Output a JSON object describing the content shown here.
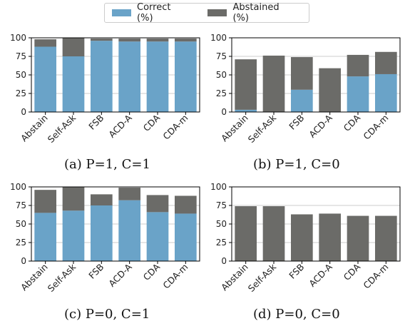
{
  "legend": {
    "items": [
      {
        "label": "Correct (%)",
        "color": "#6aa3c8"
      },
      {
        "label": "Abstained (%)",
        "color": "#6b6b68"
      }
    ]
  },
  "captions": [
    "(a) P=1, C=1",
    "(b) P=1, C=0",
    "(c) P=0, C=1",
    "(d) P=0, C=0"
  ],
  "colors": {
    "correct": "#6aa3c8",
    "abstained": "#6b6b68",
    "grid": "#cccccc",
    "axis": "#000000"
  },
  "chart_data": [
    {
      "type": "bar",
      "stacked": true,
      "categories": [
        "Abstain",
        "Self-Ask",
        "FSB",
        "ACD-A",
        "CDA",
        "CDA-m"
      ],
      "series": [
        {
          "name": "Correct (%)",
          "values": [
            88,
            75,
            96,
            95,
            95,
            95
          ]
        },
        {
          "name": "Abstained (%)",
          "values": [
            10,
            25,
            3,
            4,
            4,
            4
          ]
        }
      ],
      "yticks": [
        0,
        25,
        50,
        75,
        100
      ],
      "ylim": [
        0,
        100
      ],
      "grid": true
    },
    {
      "type": "bar",
      "stacked": true,
      "categories": [
        "Abstain",
        "Self-Ask",
        "FSB",
        "ACD-A",
        "CDA",
        "CDA-m"
      ],
      "series": [
        {
          "name": "Correct (%)",
          "values": [
            3,
            0,
            30,
            0,
            48,
            51
          ]
        },
        {
          "name": "Abstained (%)",
          "values": [
            68,
            76,
            44,
            59,
            29,
            30
          ]
        }
      ],
      "yticks": [
        0,
        25,
        50,
        75,
        100
      ],
      "ylim": [
        0,
        100
      ],
      "grid": true
    },
    {
      "type": "bar",
      "stacked": true,
      "categories": [
        "Abstain",
        "Self-Ask",
        "FSB",
        "ACD-A",
        "CDA",
        "CDA-m"
      ],
      "series": [
        {
          "name": "Correct (%)",
          "values": [
            65,
            68,
            75,
            82,
            66,
            64
          ]
        },
        {
          "name": "Abstained (%)",
          "values": [
            31,
            32,
            15,
            17,
            23,
            24
          ]
        }
      ],
      "yticks": [
        0,
        25,
        50,
        75,
        100
      ],
      "ylim": [
        0,
        100
      ],
      "grid": true
    },
    {
      "type": "bar",
      "stacked": true,
      "categories": [
        "Abstain",
        "Self-Ask",
        "FSB",
        "ACD-A",
        "CDA",
        "CDA-m"
      ],
      "series": [
        {
          "name": "Correct (%)",
          "values": [
            0,
            0,
            0,
            0,
            0,
            0
          ]
        },
        {
          "name": "Abstained (%)",
          "values": [
            74,
            74,
            63,
            64,
            61,
            61
          ]
        }
      ],
      "yticks": [
        0,
        25,
        50,
        75,
        100
      ],
      "ylim": [
        0,
        100
      ],
      "grid": true
    }
  ]
}
